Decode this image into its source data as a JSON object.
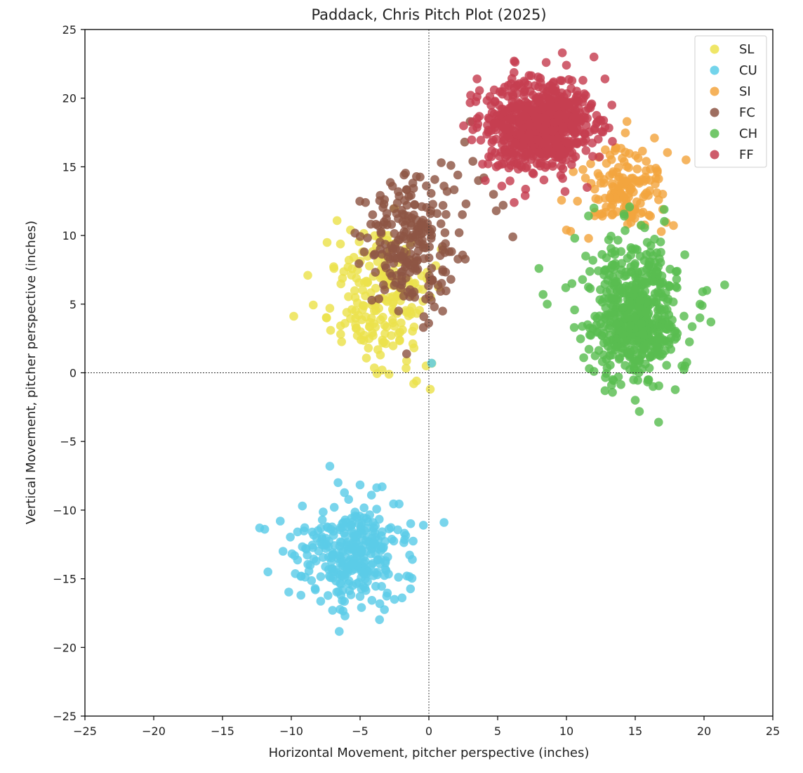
{
  "chart_data": {
    "type": "scatter",
    "title": "Paddack, Chris Pitch Plot (2025)",
    "xlabel": "Horizontal Movement, pitcher perspective (inches)",
    "ylabel": "Vertical Movement, pitcher perspective (inches)",
    "xlim": [
      -25,
      25
    ],
    "ylim": [
      -25,
      25
    ],
    "xticks": [
      -25,
      -20,
      -15,
      -10,
      -5,
      0,
      5,
      10,
      15,
      20,
      25
    ],
    "yticks": [
      -25,
      -20,
      -15,
      -10,
      -5,
      0,
      5,
      10,
      15,
      20,
      25
    ],
    "reference_lines": {
      "x": 0,
      "y": 0,
      "style": "dotted"
    },
    "grid": false,
    "legend_position": "top-right",
    "series": [
      {
        "name": "SL",
        "color": "#ece24c",
        "center": [
          -3.5,
          5.5
        ],
        "spread": [
          1.8,
          2.5
        ],
        "points": [
          [
            -8.8,
            7.1
          ],
          [
            -7.2,
            4.7
          ],
          [
            -6.9,
            7.6
          ],
          [
            -5.7,
            10.4
          ],
          [
            -3.4,
            0.2
          ],
          [
            -1.1,
            -0.8
          ],
          [
            -0.9,
            -0.6
          ],
          [
            -0.2,
            0.5
          ],
          [
            0.1,
            -1.2
          ],
          [
            0.5,
            7.8
          ],
          [
            -6.1,
            3.6
          ],
          [
            -5.2,
            2.7
          ],
          [
            -4.4,
            1.8
          ],
          [
            -2.9,
            -0.1
          ]
        ]
      },
      {
        "name": "CU",
        "color": "#5bcce8",
        "center": [
          -5.5,
          -13.2
        ],
        "spread": [
          1.9,
          1.8
        ],
        "points": [
          [
            -12.3,
            -11.3
          ],
          [
            -11.7,
            -14.5
          ],
          [
            -10.8,
            -10.8
          ],
          [
            -10.6,
            -13.0
          ],
          [
            -7.2,
            -6.8
          ],
          [
            -6.6,
            -8.0
          ],
          [
            -4.9,
            -17.1
          ],
          [
            -3.4,
            -8.3
          ],
          [
            -2.5,
            -16.5
          ],
          [
            -1.2,
            -13.6
          ],
          [
            -0.4,
            -11.1
          ],
          [
            0.2,
            0.7
          ],
          [
            1.1,
            -10.9
          ],
          [
            -7.0,
            -17.3
          ],
          [
            -9.3,
            -16.2
          ],
          [
            -1.6,
            -14.8
          ]
        ]
      },
      {
        "name": "SI",
        "color": "#f3a53e",
        "center": [
          14.2,
          13.3
        ],
        "spread": [
          1.5,
          1.6
        ],
        "points": [
          [
            10.3,
            10.3
          ],
          [
            10.0,
            10.4
          ],
          [
            10.8,
            12.5
          ],
          [
            17.0,
            11.9
          ],
          [
            16.7,
            12.6
          ],
          [
            16.4,
            17.1
          ],
          [
            14.4,
            18.3
          ],
          [
            11.2,
            14.8
          ],
          [
            16.6,
            14.6
          ],
          [
            12.6,
            11.6
          ],
          [
            13.6,
            16.4
          ],
          [
            15.8,
            15.4
          ]
        ]
      },
      {
        "name": "FC",
        "color": "#8d5544",
        "center": [
          -1.3,
          9.3
        ],
        "spread": [
          1.5,
          2.5
        ],
        "points": [
          [
            -4.7,
            8.8
          ],
          [
            -1.8,
            14.4
          ],
          [
            0.9,
            15.3
          ],
          [
            1.1,
            13.6
          ],
          [
            1.6,
            15.1
          ],
          [
            2.1,
            14.4
          ],
          [
            2.6,
            16.8
          ],
          [
            3.0,
            18.3
          ],
          [
            3.2,
            15.4
          ],
          [
            3.6,
            14.0
          ],
          [
            4.0,
            14.2
          ],
          [
            4.7,
            13.0
          ],
          [
            4.9,
            11.8
          ],
          [
            6.1,
            9.9
          ],
          [
            1.0,
            7.5
          ],
          [
            1.6,
            6.8
          ],
          [
            0.4,
            4.8
          ],
          [
            -2.2,
            4.5
          ],
          [
            -3.3,
            6.4
          ],
          [
            2.7,
            12.3
          ],
          [
            2.2,
            10.2
          ],
          [
            5.4,
            12.2
          ],
          [
            -0.4,
            3.3
          ]
        ]
      },
      {
        "name": "CH",
        "color": "#59bd50",
        "center": [
          15.0,
          4.3
        ],
        "spread": [
          1.6,
          2.4
        ],
        "points": [
          [
            16.7,
            -3.6
          ],
          [
            15.0,
            -2.0
          ],
          [
            12.8,
            -1.3
          ],
          [
            8.6,
            5.0
          ],
          [
            8.3,
            5.7
          ],
          [
            8.0,
            7.6
          ],
          [
            10.4,
            6.5
          ],
          [
            10.6,
            9.8
          ],
          [
            11.4,
            8.5
          ],
          [
            12.0,
            12.0
          ],
          [
            18.6,
            8.6
          ],
          [
            19.9,
            5.9
          ],
          [
            20.2,
            6.0
          ],
          [
            21.5,
            6.4
          ],
          [
            20.5,
            3.7
          ],
          [
            19.7,
            4.0
          ],
          [
            18.4,
            0.5
          ],
          [
            17.1,
            11.9
          ],
          [
            12.0,
            0.1
          ],
          [
            16.3,
            -1.0
          ]
        ]
      },
      {
        "name": "FF",
        "color": "#c63e50",
        "center": [
          8.2,
          18.0
        ],
        "spread": [
          1.8,
          1.5
        ],
        "points": [
          [
            3.5,
            21.4
          ],
          [
            6.2,
            22.7
          ],
          [
            9.7,
            23.3
          ],
          [
            12.0,
            23.0
          ],
          [
            11.2,
            21.3
          ],
          [
            12.8,
            21.4
          ],
          [
            13.3,
            19.5
          ],
          [
            3.2,
            17.7
          ],
          [
            3.5,
            20.1
          ],
          [
            3.9,
            15.2
          ],
          [
            4.1,
            14.0
          ],
          [
            4.9,
            15.0
          ],
          [
            5.3,
            13.6
          ],
          [
            6.2,
            12.4
          ],
          [
            7.0,
            12.9
          ],
          [
            9.9,
            13.2
          ],
          [
            11.5,
            13.5
          ],
          [
            11.4,
            17.0
          ],
          [
            5.5,
            20.8
          ],
          [
            10.0,
            22.4
          ]
        ]
      }
    ]
  }
}
